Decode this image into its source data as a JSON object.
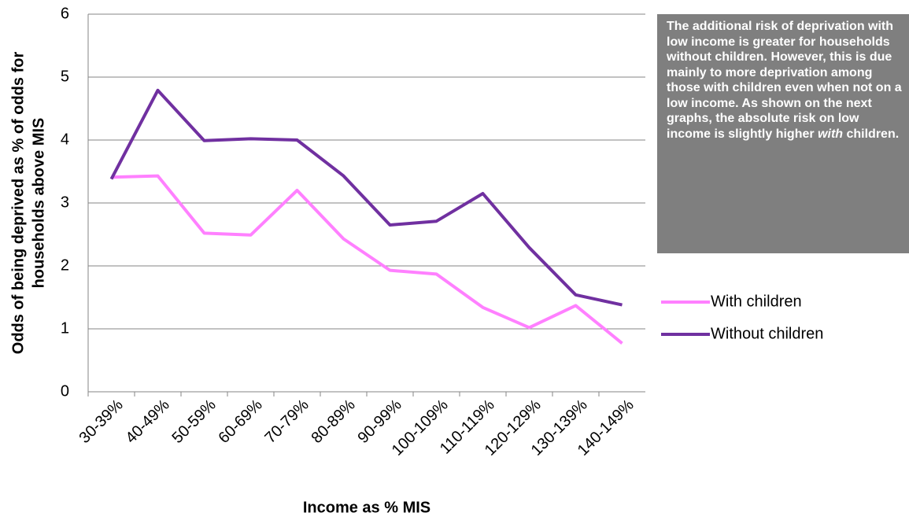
{
  "chart_data": {
    "type": "line",
    "x_label": "Income as % MIS",
    "y_label": [
      "Odds of being deprived as % of odds for",
      "households above MIS"
    ],
    "categories": [
      "30-39%",
      "40-49%",
      "50-59%",
      "60-69%",
      "70-79%",
      "80-89%",
      "90-99%",
      "100-109%",
      "110-119%",
      "120-129%",
      "130-139%",
      "140-149%"
    ],
    "series": [
      {
        "name": "With children",
        "color": "#ff80ff",
        "values": [
          3.41,
          3.43,
          2.52,
          2.49,
          3.2,
          2.43,
          1.93,
          1.87,
          1.34,
          1.02,
          1.37,
          0.77
        ]
      },
      {
        "name": "Without children",
        "color": "#7030a0",
        "values": [
          3.38,
          4.79,
          3.99,
          4.02,
          4.0,
          3.43,
          2.65,
          2.71,
          3.15,
          2.29,
          1.54,
          1.38
        ]
      }
    ],
    "ylim": [
      0,
      6
    ],
    "yticks": [
      0,
      1,
      2,
      3,
      4,
      5,
      6
    ],
    "grid": true,
    "legend": "right",
    "annotation": [
      "The additional risk of deprivation with low income is greater for households without children. However, this is due mainly to more deprivation among those with children even when not on a low income.  As shown on the next graphs, the absolute risk on low income is slightly higher ",
      "with",
      " children."
    ]
  }
}
